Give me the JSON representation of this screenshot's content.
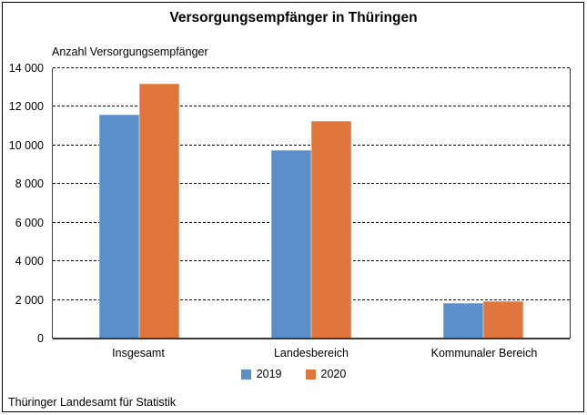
{
  "chart_data": {
    "type": "bar",
    "title": "Versorgungsempfänger in Thüringen",
    "axis_title": "Anzahl Versorgungsempfänger",
    "categories": [
      "Insgesamt",
      "Landesbereich",
      "Kommunaler Bereich"
    ],
    "series": [
      {
        "name": "2019",
        "color": "#5b8fc9",
        "values": [
          11600,
          9750,
          1850
        ]
      },
      {
        "name": "2020",
        "color": "#e0763c",
        "values": [
          13200,
          11250,
          1950
        ]
      }
    ],
    "ylim": [
      0,
      14000
    ],
    "ytick_step": 2000,
    "xlabel": "",
    "ylabel": "Anzahl Versorgungsempfänger",
    "grid": "horizontal-dashed",
    "legend_position": "bottom"
  },
  "footer": {
    "source": "Thüringer Landesamt für Statistik"
  }
}
